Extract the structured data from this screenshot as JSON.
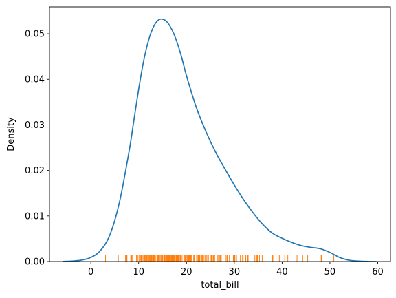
{
  "chart_data": {
    "type": "line",
    "title": "",
    "xlabel": "total_bill",
    "ylabel": "Density",
    "xlim": [
      -8.65,
      62.66
    ],
    "ylim": [
      0,
      0.0559
    ],
    "grid": false,
    "legend": "none",
    "xticks": [
      0,
      10,
      20,
      30,
      40,
      50,
      60
    ],
    "yticks": [
      0.0,
      0.01,
      0.02,
      0.03,
      0.04,
      0.05
    ],
    "ytick_labels": [
      "0.00",
      "0.01",
      "0.02",
      "0.03",
      "0.04",
      "0.05"
    ],
    "series": [
      {
        "kind": "kde",
        "color": "#1f77b4",
        "x": [
          -5.8,
          -4,
          -2,
          0,
          2,
          4,
          6,
          8,
          9,
          10,
          11,
          12,
          13,
          14,
          15,
          16,
          17,
          18,
          19,
          20,
          22,
          24,
          26,
          28,
          30,
          32,
          34,
          36,
          38,
          40,
          42,
          44,
          46,
          48,
          50,
          52,
          54,
          56,
          58,
          59.7
        ],
        "y": [
          3e-05,
          0.0001,
          0.0003,
          0.0009,
          0.0024,
          0.0059,
          0.0131,
          0.0242,
          0.031,
          0.0378,
          0.0438,
          0.0483,
          0.0513,
          0.0529,
          0.0532,
          0.0525,
          0.0508,
          0.0482,
          0.0448,
          0.0408,
          0.034,
          0.0287,
          0.0242,
          0.0204,
          0.0168,
          0.0135,
          0.0106,
          0.0081,
          0.0062,
          0.0051,
          0.0042,
          0.0035,
          0.0031,
          0.0028,
          0.002,
          0.0009,
          0.0003,
          0.0001,
          3e-05,
          1e-05
        ]
      },
      {
        "kind": "rug",
        "color": "#ff7f0e",
        "height": 0.0014,
        "x": [
          3.07,
          5.75,
          7.25,
          7.51,
          7.56,
          8.35,
          8.51,
          8.52,
          8.58,
          8.77,
          9.55,
          9.6,
          9.68,
          9.78,
          10.07,
          10.29,
          10.33,
          10.34,
          10.51,
          10.59,
          10.63,
          10.77,
          11.02,
          11.17,
          11.24,
          11.35,
          11.38,
          11.59,
          11.61,
          11.69,
          11.87,
          12.02,
          12.16,
          12.26,
          12.43,
          12.46,
          12.54,
          12.6,
          12.66,
          12.69,
          12.74,
          12.9,
          13.0,
          13.13,
          13.28,
          13.37,
          13.39,
          13.42,
          13.51,
          13.81,
          13.94,
          14.07,
          14.15,
          14.26,
          14.31,
          14.48,
          14.52,
          14.73,
          14.78,
          14.83,
          15.01,
          15.04,
          15.06,
          15.36,
          15.42,
          15.48,
          15.53,
          15.69,
          15.77,
          15.81,
          15.95,
          15.98,
          16.0,
          16.21,
          16.29,
          16.31,
          16.4,
          16.45,
          16.47,
          16.58,
          16.66,
          16.82,
          16.93,
          16.97,
          16.99,
          17.07,
          17.29,
          17.31,
          17.46,
          17.47,
          17.51,
          17.59,
          17.78,
          17.81,
          17.82,
          17.89,
          17.92,
          18.04,
          18.15,
          18.24,
          18.26,
          18.28,
          18.29,
          18.35,
          18.43,
          18.64,
          18.69,
          18.71,
          18.78,
          19.08,
          19.44,
          19.49,
          19.65,
          19.77,
          19.81,
          19.82,
          20.08,
          20.23,
          20.27,
          20.29,
          20.45,
          20.49,
          20.53,
          20.65,
          20.69,
          20.76,
          20.9,
          20.92,
          21.01,
          21.16,
          21.5,
          21.58,
          21.7,
          22.12,
          22.23,
          22.42,
          22.49,
          22.67,
          22.75,
          22.76,
          22.82,
          23.1,
          23.17,
          23.33,
          23.68,
          23.95,
          24.01,
          24.06,
          24.08,
          24.27,
          24.52,
          24.55,
          24.59,
          25.0,
          25.21,
          25.28,
          25.29,
          25.56,
          25.71,
          25.89,
          26.41,
          26.59,
          26.86,
          26.88,
          27.05,
          27.18,
          27.2,
          27.28,
          28.15,
          28.17,
          28.44,
          28.55,
          28.97,
          29.03,
          29.8,
          29.85,
          29.93,
          30.06,
          30.14,
          30.4,
          30.46,
          31.27,
          31.71,
          31.85,
          32.4,
          32.68,
          32.83,
          32.9,
          34.3,
          34.63,
          34.65,
          34.81,
          34.83,
          35.26,
          35.83,
          38.01,
          38.07,
          38.73,
          39.42,
          40.17,
          40.55,
          41.19,
          43.11,
          44.3,
          45.35,
          48.17,
          48.27,
          48.33,
          50.81
        ]
      }
    ]
  }
}
